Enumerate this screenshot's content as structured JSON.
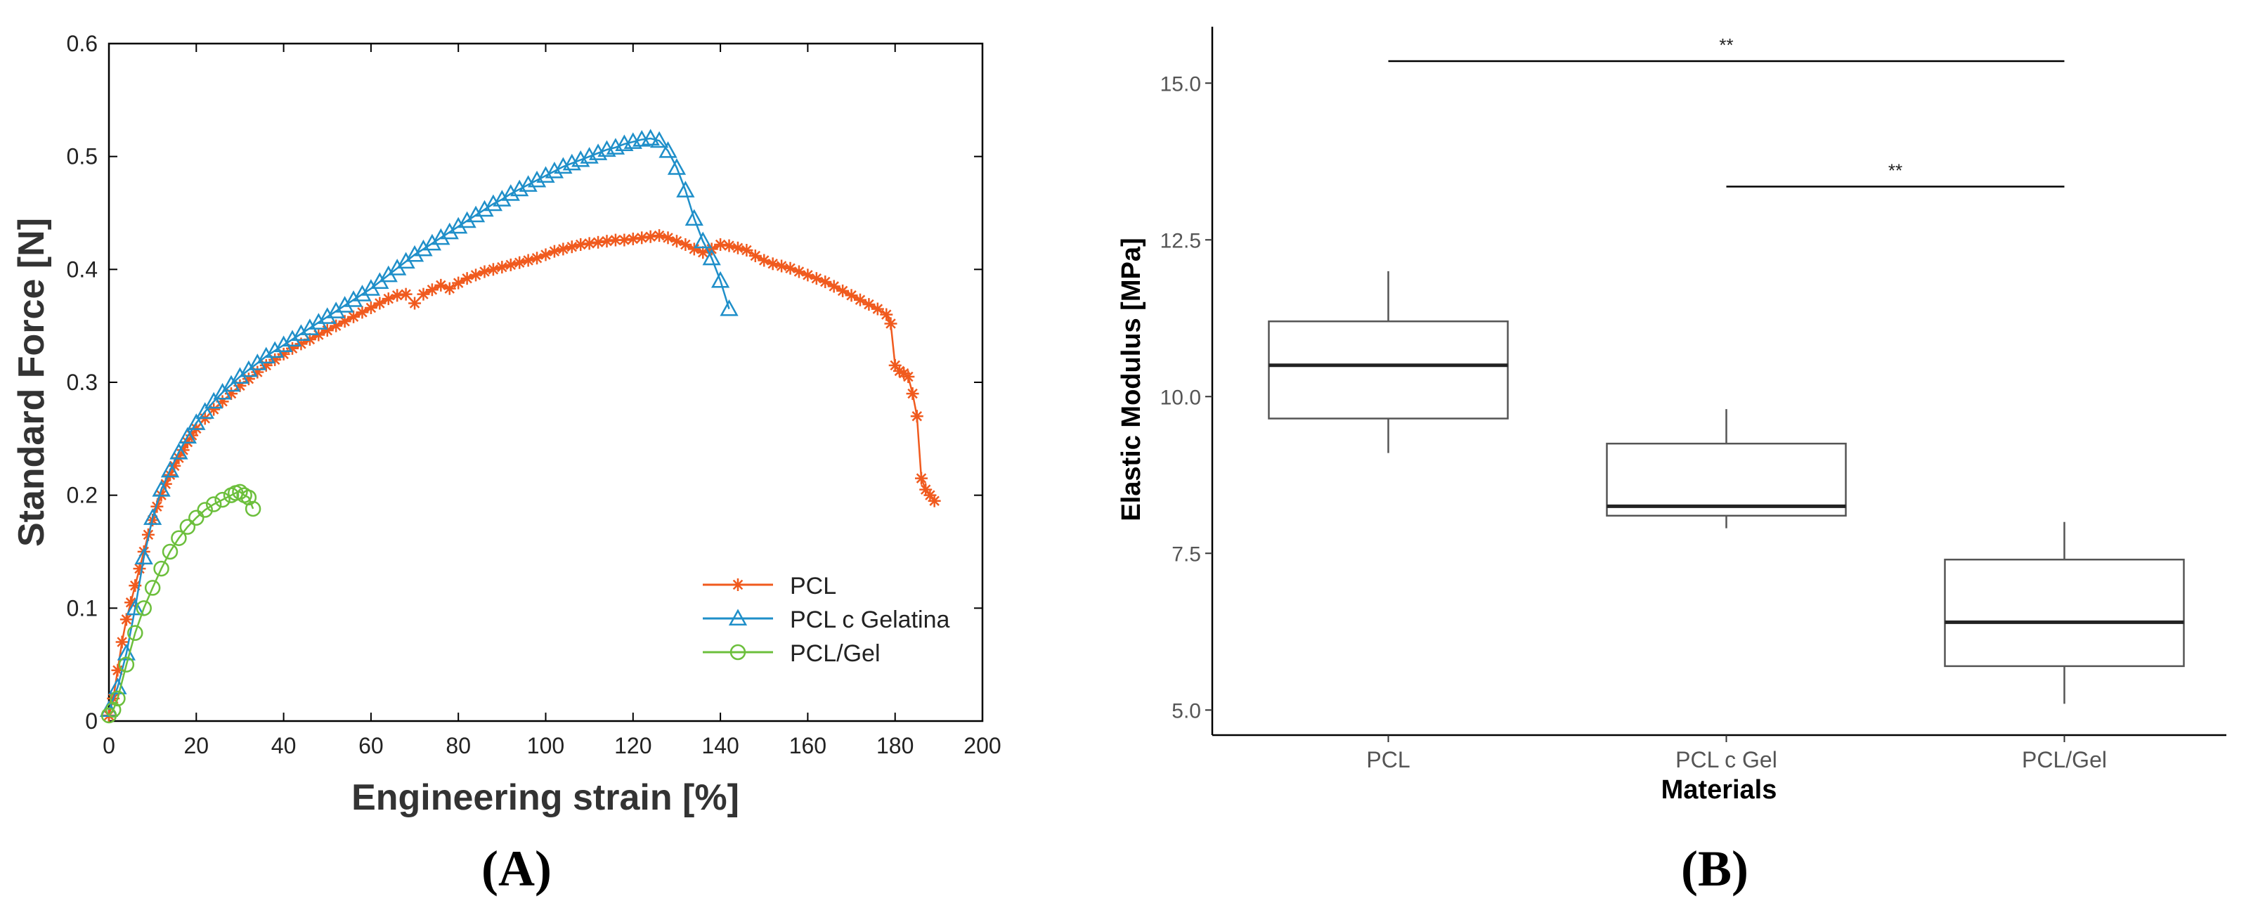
{
  "panel_labels": {
    "a": "(A)",
    "b": "(B)"
  },
  "colors": {
    "pcl": "#f05a1e",
    "pcl_c_gelatina": "#1f8fc9",
    "pcl_gel": "#6cbf3c",
    "axis": "#000000",
    "box": "#555555",
    "box_tick": "#555555"
  },
  "chart_data": [
    {
      "type": "line",
      "panel": "A",
      "title": "",
      "xlabel": "Engineering strain [%]",
      "ylabel": "Standard Force [N]",
      "xlim": [
        0,
        200
      ],
      "ylim": [
        0,
        0.6
      ],
      "xticks": [
        "0",
        "20",
        "40",
        "60",
        "80",
        "100",
        "120",
        "140",
        "160",
        "180",
        "200"
      ],
      "yticks": [
        "0",
        "0.1",
        "0.2",
        "0.3",
        "0.4",
        "0.5",
        "0.6"
      ],
      "legend_position": "bottom-right",
      "series": [
        {
          "name": "PCL",
          "marker": "star",
          "color": "#f05a1e",
          "x": [
            0,
            1,
            2,
            3,
            4,
            5,
            6,
            7,
            8,
            9,
            10,
            11,
            12,
            13,
            14,
            15,
            16,
            17,
            18,
            19,
            20,
            22,
            24,
            26,
            28,
            30,
            32,
            34,
            36,
            38,
            40,
            42,
            44,
            46,
            48,
            50,
            52,
            54,
            56,
            58,
            60,
            62,
            64,
            66,
            68,
            70,
            72,
            74,
            76,
            78,
            80,
            82,
            84,
            86,
            88,
            90,
            92,
            94,
            96,
            98,
            100,
            102,
            104,
            106,
            108,
            110,
            112,
            114,
            116,
            118,
            120,
            122,
            124,
            126,
            128,
            130,
            132,
            134,
            136,
            138,
            140,
            142,
            144,
            146,
            148,
            150,
            152,
            154,
            156,
            158,
            160,
            162,
            164,
            166,
            168,
            170,
            172,
            174,
            176,
            178,
            179,
            180,
            181,
            182,
            183,
            184,
            185,
            186,
            187,
            188,
            189
          ],
          "y": [
            0.005,
            0.02,
            0.045,
            0.07,
            0.09,
            0.105,
            0.12,
            0.135,
            0.15,
            0.165,
            0.178,
            0.19,
            0.2,
            0.21,
            0.218,
            0.226,
            0.233,
            0.24,
            0.247,
            0.253,
            0.259,
            0.268,
            0.276,
            0.283,
            0.29,
            0.297,
            0.303,
            0.309,
            0.315,
            0.32,
            0.325,
            0.33,
            0.334,
            0.338,
            0.342,
            0.346,
            0.35,
            0.354,
            0.358,
            0.362,
            0.366,
            0.37,
            0.374,
            0.377,
            0.378,
            0.37,
            0.378,
            0.382,
            0.386,
            0.383,
            0.388,
            0.392,
            0.395,
            0.398,
            0.4,
            0.402,
            0.404,
            0.406,
            0.408,
            0.41,
            0.413,
            0.416,
            0.418,
            0.42,
            0.422,
            0.423,
            0.424,
            0.425,
            0.426,
            0.426,
            0.427,
            0.428,
            0.429,
            0.43,
            0.428,
            0.425,
            0.422,
            0.418,
            0.415,
            0.418,
            0.422,
            0.421,
            0.419,
            0.417,
            0.412,
            0.408,
            0.405,
            0.403,
            0.401,
            0.398,
            0.395,
            0.392,
            0.389,
            0.385,
            0.381,
            0.377,
            0.373,
            0.369,
            0.365,
            0.36,
            0.352,
            0.315,
            0.31,
            0.308,
            0.305,
            0.29,
            0.27,
            0.215,
            0.205,
            0.2,
            0.195
          ]
        },
        {
          "name": "PCL c Gelatina",
          "marker": "triangle",
          "color": "#1f8fc9",
          "x": [
            0,
            2,
            4,
            6,
            8,
            10,
            12,
            14,
            16,
            18,
            20,
            22,
            24,
            26,
            28,
            30,
            32,
            34,
            36,
            38,
            40,
            42,
            44,
            46,
            48,
            50,
            52,
            54,
            56,
            58,
            60,
            62,
            64,
            66,
            68,
            70,
            72,
            74,
            76,
            78,
            80,
            82,
            84,
            86,
            88,
            90,
            92,
            94,
            96,
            98,
            100,
            102,
            104,
            106,
            108,
            110,
            112,
            114,
            116,
            118,
            120,
            122,
            124,
            126,
            128,
            130,
            132,
            134,
            136,
            138,
            140,
            142
          ],
          "y": [
            0.01,
            0.03,
            0.06,
            0.1,
            0.145,
            0.18,
            0.205,
            0.222,
            0.238,
            0.252,
            0.264,
            0.274,
            0.283,
            0.291,
            0.298,
            0.305,
            0.311,
            0.317,
            0.323,
            0.328,
            0.333,
            0.338,
            0.343,
            0.348,
            0.353,
            0.358,
            0.363,
            0.368,
            0.373,
            0.378,
            0.383,
            0.389,
            0.395,
            0.401,
            0.407,
            0.413,
            0.418,
            0.423,
            0.428,
            0.433,
            0.438,
            0.443,
            0.448,
            0.453,
            0.458,
            0.462,
            0.467,
            0.471,
            0.475,
            0.479,
            0.483,
            0.487,
            0.491,
            0.494,
            0.497,
            0.5,
            0.503,
            0.506,
            0.508,
            0.511,
            0.513,
            0.515,
            0.516,
            0.514,
            0.505,
            0.49,
            0.47,
            0.445,
            0.425,
            0.41,
            0.39,
            0.365
          ]
        },
        {
          "name": "PCL/Gel",
          "marker": "circle",
          "color": "#6cbf3c",
          "x": [
            0,
            1,
            2,
            4,
            6,
            8,
            10,
            12,
            14,
            16,
            18,
            20,
            22,
            24,
            26,
            28,
            29,
            30,
            31,
            32,
            33
          ],
          "y": [
            0.005,
            0.01,
            0.02,
            0.05,
            0.078,
            0.1,
            0.118,
            0.135,
            0.15,
            0.162,
            0.172,
            0.18,
            0.187,
            0.192,
            0.196,
            0.2,
            0.202,
            0.203,
            0.2,
            0.198,
            0.188
          ]
        }
      ]
    },
    {
      "type": "boxplot",
      "panel": "B",
      "title": "",
      "xlabel": "Materials",
      "ylabel": "Elastic Modulus [MPa]",
      "ylim": [
        4.6,
        15.9
      ],
      "yticks": [
        "5.0",
        "7.5",
        "10.0",
        "12.5",
        "15.0"
      ],
      "categories": [
        "PCL",
        "PCL c Gel",
        "PCL/Gel"
      ],
      "boxes": [
        {
          "category": "PCL",
          "min": 9.1,
          "q1": 9.65,
          "median": 10.5,
          "q3": 11.2,
          "max": 12.0
        },
        {
          "category": "PCL c Gel",
          "min": 7.9,
          "q1": 8.1,
          "median": 8.25,
          "q3": 9.25,
          "max": 9.8
        },
        {
          "category": "PCL/Gel",
          "min": 5.1,
          "q1": 5.7,
          "median": 6.4,
          "q3": 7.4,
          "max": 8.0
        }
      ],
      "significance": [
        {
          "from": "PCL",
          "to": "PCL/Gel",
          "y": 15.35,
          "label": "**"
        },
        {
          "from": "PCL c Gel",
          "to": "PCL/Gel",
          "y": 13.35,
          "label": "**"
        }
      ]
    }
  ]
}
